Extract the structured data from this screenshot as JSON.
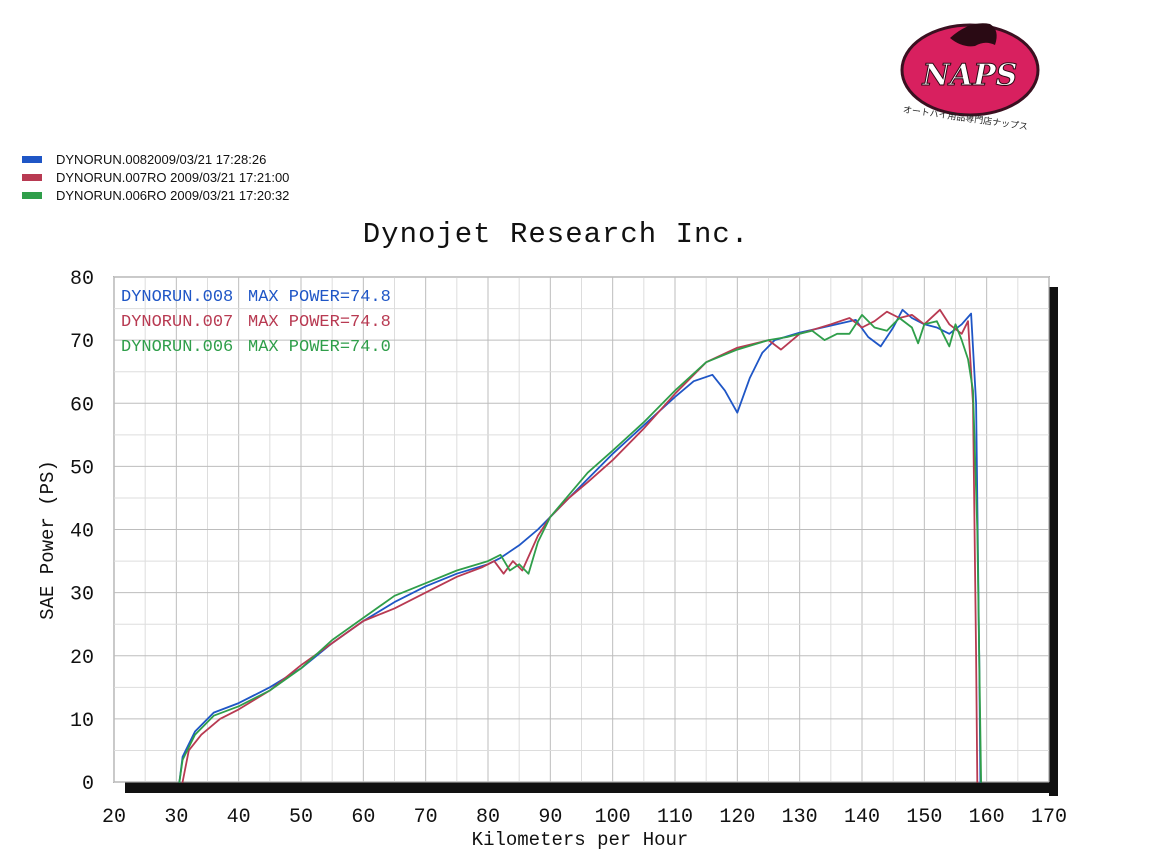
{
  "logo": {
    "text": "NAPS",
    "caption": "オートバイ用品専門店ナップス",
    "color": "#d8205f"
  },
  "top_legend": [
    {
      "label": "DYNORUN.0082009/03/21 17:28:26",
      "color": "#1f56c6"
    },
    {
      "label": "DYNORUN.007RO  2009/03/21 17:21:00",
      "color": "#b83a52"
    },
    {
      "label": "DYNORUN.006RO  2009/03/21 17:20:32",
      "color": "#2f9e4a"
    }
  ],
  "chart_data": {
    "type": "line",
    "title": "Dynojet Research Inc.",
    "xlabel": "Kilometers per Hour",
    "ylabel": "SAE Power (PS)",
    "xlim": [
      20,
      170
    ],
    "ylim": [
      0,
      80
    ],
    "x_ticks": [
      20,
      30,
      40,
      50,
      60,
      70,
      80,
      90,
      100,
      110,
      120,
      130,
      140,
      150,
      160,
      170
    ],
    "y_ticks": [
      0,
      10,
      20,
      30,
      40,
      50,
      60,
      70,
      80
    ],
    "grid": true,
    "legend_position": "top-left",
    "annotations": [
      {
        "run": "DYNORUN.008",
        "text": "MAX POWER=74.8",
        "color": "#1f56c6"
      },
      {
        "run": "DYNORUN.007",
        "text": "MAX POWER=74.8",
        "color": "#b83a52"
      },
      {
        "run": "DYNORUN.006",
        "text": "MAX POWER=74.0",
        "color": "#2f9e4a"
      }
    ],
    "series": [
      {
        "name": "DYNORUN.008",
        "color": "#1f56c6",
        "points": [
          [
            30.5,
            0
          ],
          [
            31,
            4
          ],
          [
            33,
            8
          ],
          [
            36,
            11
          ],
          [
            40,
            12.5
          ],
          [
            45,
            15
          ],
          [
            50,
            18
          ],
          [
            55,
            22
          ],
          [
            60,
            25.5
          ],
          [
            65,
            28.5
          ],
          [
            70,
            31
          ],
          [
            75,
            33
          ],
          [
            80,
            34.5
          ],
          [
            82,
            35.5
          ],
          [
            85,
            37.5
          ],
          [
            88,
            40
          ],
          [
            92,
            44
          ],
          [
            96,
            48
          ],
          [
            100,
            52
          ],
          [
            105,
            56.5
          ],
          [
            110,
            61
          ],
          [
            113,
            63.5
          ],
          [
            116,
            64.5
          ],
          [
            118,
            62
          ],
          [
            120,
            58.5
          ],
          [
            122,
            64
          ],
          [
            124,
            68
          ],
          [
            126,
            70
          ],
          [
            130,
            71.2
          ],
          [
            135,
            72.3
          ],
          [
            139,
            73.2
          ],
          [
            141,
            70.5
          ],
          [
            143,
            69
          ],
          [
            145,
            72
          ],
          [
            146.5,
            74.8
          ],
          [
            148,
            73.5
          ],
          [
            150,
            72.5
          ],
          [
            152,
            72
          ],
          [
            154,
            71
          ],
          [
            156,
            72.5
          ],
          [
            157.5,
            74.2
          ],
          [
            158.3,
            60
          ],
          [
            158.8,
            20
          ],
          [
            159,
            0
          ]
        ]
      },
      {
        "name": "DYNORUN.007",
        "color": "#b83a52",
        "points": [
          [
            31,
            0
          ],
          [
            32,
            5
          ],
          [
            34,
            7.5
          ],
          [
            37,
            10
          ],
          [
            40,
            11.5
          ],
          [
            45,
            14.5
          ],
          [
            50,
            18.5
          ],
          [
            55,
            22
          ],
          [
            60,
            25.5
          ],
          [
            65,
            27.5
          ],
          [
            70,
            30
          ],
          [
            75,
            32.5
          ],
          [
            79,
            34
          ],
          [
            81,
            35
          ],
          [
            82.5,
            33
          ],
          [
            84,
            35
          ],
          [
            85.5,
            33.5
          ],
          [
            88,
            39
          ],
          [
            90,
            42
          ],
          [
            93,
            45
          ],
          [
            96,
            47.5
          ],
          [
            100,
            51
          ],
          [
            105,
            56
          ],
          [
            110,
            61.5
          ],
          [
            115,
            66.5
          ],
          [
            120,
            68.8
          ],
          [
            123,
            69.5
          ],
          [
            125,
            70
          ],
          [
            127,
            68.5
          ],
          [
            130,
            71
          ],
          [
            135,
            72.5
          ],
          [
            138,
            73.5
          ],
          [
            140,
            72
          ],
          [
            142,
            73
          ],
          [
            144,
            74.5
          ],
          [
            146,
            73.5
          ],
          [
            148,
            74
          ],
          [
            150,
            72.5
          ],
          [
            152.5,
            74.8
          ],
          [
            154,
            72.5
          ],
          [
            156,
            71
          ],
          [
            157,
            73
          ],
          [
            157.8,
            60
          ],
          [
            158.3,
            20
          ],
          [
            158.5,
            0
          ]
        ]
      },
      {
        "name": "DYNORUN.006",
        "color": "#2f9e4a",
        "points": [
          [
            30.5,
            0
          ],
          [
            31,
            3.5
          ],
          [
            33,
            7.5
          ],
          [
            36,
            10.5
          ],
          [
            40,
            12
          ],
          [
            45,
            14.5
          ],
          [
            50,
            18
          ],
          [
            55,
            22.5
          ],
          [
            60,
            26
          ],
          [
            65,
            29.5
          ],
          [
            70,
            31.5
          ],
          [
            75,
            33.5
          ],
          [
            80,
            35
          ],
          [
            82,
            36
          ],
          [
            83.5,
            33.5
          ],
          [
            85,
            34.5
          ],
          [
            86.5,
            33
          ],
          [
            88,
            38
          ],
          [
            90,
            42
          ],
          [
            93,
            45.5
          ],
          [
            96,
            49
          ],
          [
            100,
            52.5
          ],
          [
            105,
            57
          ],
          [
            110,
            62
          ],
          [
            115,
            66.5
          ],
          [
            120,
            68.5
          ],
          [
            125,
            70
          ],
          [
            128,
            70.5
          ],
          [
            130,
            71
          ],
          [
            132,
            71.5
          ],
          [
            134,
            70
          ],
          [
            136,
            71
          ],
          [
            138,
            71
          ],
          [
            140,
            74
          ],
          [
            142,
            72
          ],
          [
            144,
            71.5
          ],
          [
            146,
            73.5
          ],
          [
            148,
            72
          ],
          [
            149,
            69.5
          ],
          [
            150,
            72.5
          ],
          [
            152,
            73
          ],
          [
            153,
            71
          ],
          [
            154,
            69
          ],
          [
            155,
            72.5
          ],
          [
            156,
            70
          ],
          [
            157,
            67
          ],
          [
            157.8,
            62
          ],
          [
            158.5,
            40
          ],
          [
            159.1,
            0
          ]
        ]
      }
    ]
  }
}
